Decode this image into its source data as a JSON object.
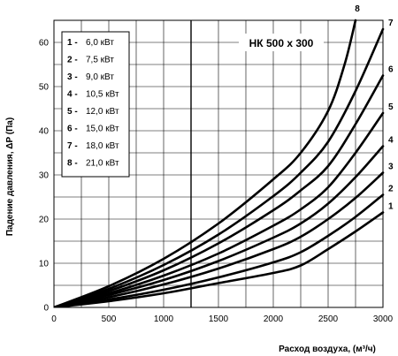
{
  "chart_data": {
    "type": "line",
    "title": "НК 500 x 300",
    "xlabel": "Расход воздуха, (м³/ч)",
    "ylabel": "Падение давления, ΔP (Па)",
    "xlim": [
      0,
      3000
    ],
    "ylim": [
      0,
      65
    ],
    "x_ticks": [
      0,
      500,
      1000,
      1500,
      2000,
      2500,
      3000
    ],
    "y_ticks": [
      0,
      10,
      20,
      30,
      40,
      50,
      60
    ],
    "grid": true,
    "legend_position": "top-left",
    "vertical_marker_x": 1250,
    "legend": [
      {
        "num": "1 -",
        "text": "6,0 кВт"
      },
      {
        "num": "2 -",
        "text": "7,5 кВт"
      },
      {
        "num": "3 -",
        "text": "9,0 кВт"
      },
      {
        "num": "4 -",
        "text": "10,5 кВт"
      },
      {
        "num": "5 -",
        "text": "12,0 кВт"
      },
      {
        "num": "6 -",
        "text": "15,0 кВт"
      },
      {
        "num": "7 -",
        "text": "18,0 кВт"
      },
      {
        "num": "8 -",
        "text": "21,0 кВт"
      }
    ],
    "series": [
      {
        "name": "1",
        "x": [
          0,
          500,
          1000,
          1500,
          2000,
          2250,
          2500,
          2750,
          3000
        ],
        "y": [
          0,
          1.4,
          3.2,
          5.5,
          7.8,
          9.5,
          13.2,
          17.2,
          21.5
        ]
      },
      {
        "name": "2",
        "x": [
          0,
          500,
          1000,
          1500,
          2000,
          2250,
          2500,
          2750,
          3000
        ],
        "y": [
          0,
          1.8,
          4.0,
          6.8,
          10.2,
          12.5,
          16.2,
          20.5,
          25.5
        ]
      },
      {
        "name": "3",
        "x": [
          0,
          500,
          1000,
          1500,
          2000,
          2250,
          2500,
          2750,
          3000
        ],
        "y": [
          0,
          2.3,
          5.2,
          8.8,
          13.2,
          16.0,
          20.0,
          24.8,
          30.5
        ]
      },
      {
        "name": "4",
        "x": [
          0,
          500,
          1000,
          1500,
          2000,
          2250,
          2500,
          2750,
          3000
        ],
        "y": [
          0,
          2.8,
          6.2,
          10.5,
          15.8,
          19.0,
          23.5,
          29.5,
          36.5
        ]
      },
      {
        "name": "5",
        "x": [
          0,
          500,
          1000,
          1500,
          2000,
          2250,
          2500,
          2750,
          3000
        ],
        "y": [
          0,
          3.2,
          7.2,
          12.2,
          18.5,
          22.2,
          27.2,
          35.0,
          44.0
        ]
      },
      {
        "name": "6",
        "x": [
          0,
          500,
          1000,
          1500,
          2000,
          2250,
          2500,
          2750,
          3000
        ],
        "y": [
          0,
          3.7,
          8.4,
          14.5,
          22.0,
          26.5,
          32.0,
          41.5,
          52.5
        ]
      },
      {
        "name": "7",
        "x": [
          0,
          500,
          1000,
          1500,
          2000,
          2250,
          2500,
          2750,
          3000
        ],
        "y": [
          0,
          4.2,
          9.6,
          16.5,
          25.2,
          30.5,
          37.5,
          49.0,
          63.0
        ]
      },
      {
        "name": "8",
        "x": [
          0,
          500,
          1000,
          1500,
          2000,
          2250,
          2500,
          2650,
          2750
        ],
        "y": [
          0,
          4.8,
          11.0,
          19.0,
          29.0,
          35.0,
          44.5,
          55.0,
          65.0
        ]
      }
    ]
  }
}
